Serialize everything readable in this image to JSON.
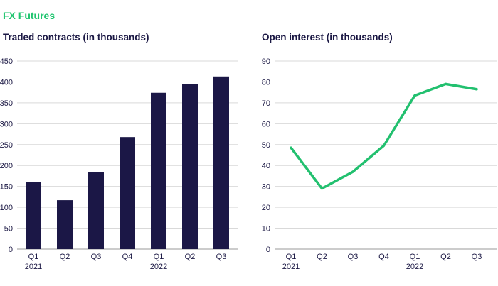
{
  "page": {
    "title": "FX Futures"
  },
  "colors": {
    "title": "#1ec46e",
    "bar": "#1b1746",
    "line": "#22c06f",
    "grid": "#d9d9d9",
    "text": "#1b1844"
  },
  "chart_data": [
    {
      "type": "bar",
      "title": "Traded contracts (in thousands)",
      "categories": [
        "Q1",
        "Q2",
        "Q3",
        "Q4",
        "Q1",
        "Q2",
        "Q3"
      ],
      "year_labels": [
        "2021",
        "",
        "",
        "",
        "2022",
        "",
        ""
      ],
      "values": [
        161,
        117,
        184,
        268,
        374,
        394,
        413
      ],
      "yticks": [
        0,
        50,
        100,
        150,
        200,
        250,
        300,
        350,
        400,
        450
      ],
      "ylim": [
        0,
        450
      ]
    },
    {
      "type": "line",
      "title": "Open interest (in thousands)",
      "categories": [
        "Q1",
        "Q2",
        "Q3",
        "Q4",
        "Q1",
        "Q2",
        "Q3"
      ],
      "year_labels": [
        "2021",
        "",
        "",
        "",
        "2022",
        "",
        ""
      ],
      "values": [
        48.5,
        29,
        37,
        49.5,
        73.5,
        79,
        76.5
      ],
      "yticks": [
        0,
        10,
        20,
        30,
        40,
        50,
        60,
        70,
        80,
        90
      ],
      "ylim": [
        0,
        90
      ]
    }
  ]
}
